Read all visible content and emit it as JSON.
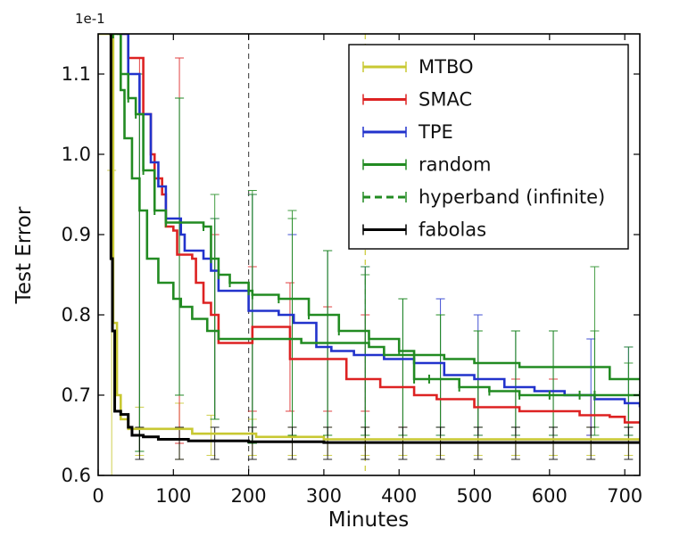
{
  "chart_data": {
    "type": "line",
    "title": "",
    "xlabel": "Minutes",
    "ylabel": "Test Error",
    "y_scale_note": "1e-1",
    "xlim": [
      0,
      720
    ],
    "ylim": [
      0.6,
      1.15
    ],
    "xticks": [
      0,
      100,
      200,
      300,
      400,
      500,
      600,
      700
    ],
    "yticks": [
      0.6,
      0.7,
      0.8,
      0.9,
      1.0,
      1.1
    ],
    "ytick_labels": [
      "0.6",
      "0.7",
      "0.8",
      "0.9",
      "1.0",
      "1.1"
    ],
    "vline_x": 200,
    "vline2_x": 355,
    "legend_position": "top-right",
    "series": [
      {
        "name": "MTBO",
        "color": "#c8c832",
        "style": "solid",
        "points": [
          [
            0,
            1.15
          ],
          [
            18,
            1.15
          ],
          [
            20,
            0.79
          ],
          [
            25,
            0.7
          ],
          [
            30,
            0.67
          ],
          [
            40,
            0.658
          ],
          [
            120,
            0.658
          ],
          [
            125,
            0.652
          ],
          [
            200,
            0.652
          ],
          [
            210,
            0.648
          ],
          [
            300,
            0.645
          ],
          [
            720,
            0.642
          ]
        ],
        "errorbars": [
          [
            18,
            0.6,
            0.98
          ],
          [
            55,
            0.625,
            0.685
          ],
          [
            108,
            0.62,
            0.69
          ],
          [
            150,
            0.625,
            0.675
          ],
          [
            205,
            0.625,
            0.67
          ],
          [
            258,
            0.625,
            0.66
          ],
          [
            305,
            0.625,
            0.66
          ],
          [
            355,
            0.625,
            0.66
          ],
          [
            405,
            0.625,
            0.66
          ],
          [
            455,
            0.625,
            0.66
          ],
          [
            505,
            0.625,
            0.66
          ],
          [
            555,
            0.625,
            0.66
          ],
          [
            605,
            0.625,
            0.66
          ],
          [
            655,
            0.625,
            0.66
          ],
          [
            705,
            0.625,
            0.66
          ]
        ]
      },
      {
        "name": "SMAC",
        "color": "#dd2222",
        "style": "solid",
        "points": [
          [
            30,
            1.15
          ],
          [
            40,
            1.12
          ],
          [
            55,
            1.12
          ],
          [
            60,
            1.05
          ],
          [
            70,
            1.0
          ],
          [
            75,
            0.97
          ],
          [
            85,
            0.95
          ],
          [
            90,
            0.91
          ],
          [
            100,
            0.905
          ],
          [
            105,
            0.875
          ],
          [
            125,
            0.87
          ],
          [
            130,
            0.84
          ],
          [
            140,
            0.815
          ],
          [
            150,
            0.8
          ],
          [
            160,
            0.765
          ],
          [
            200,
            0.765
          ],
          [
            205,
            0.785
          ],
          [
            250,
            0.785
          ],
          [
            255,
            0.745
          ],
          [
            320,
            0.745
          ],
          [
            330,
            0.72
          ],
          [
            370,
            0.72
          ],
          [
            375,
            0.71
          ],
          [
            410,
            0.71
          ],
          [
            420,
            0.7
          ],
          [
            450,
            0.695
          ],
          [
            500,
            0.685
          ],
          [
            560,
            0.68
          ],
          [
            640,
            0.675
          ],
          [
            680,
            0.673
          ],
          [
            700,
            0.666
          ],
          [
            720,
            0.666
          ]
        ],
        "errorbars": [
          [
            55,
            0.63,
            1.12
          ],
          [
            108,
            0.64,
            1.12
          ],
          [
            155,
            0.67,
            0.9
          ],
          [
            205,
            0.68,
            0.86
          ],
          [
            255,
            0.68,
            0.84
          ],
          [
            305,
            0.68,
            0.81
          ],
          [
            355,
            0.68,
            0.8
          ],
          [
            405,
            0.66,
            0.75
          ],
          [
            455,
            0.65,
            0.72
          ],
          [
            505,
            0.65,
            0.72
          ],
          [
            555,
            0.65,
            0.72
          ],
          [
            605,
            0.65,
            0.72
          ],
          [
            655,
            0.65,
            0.7
          ],
          [
            705,
            0.65,
            0.69
          ]
        ]
      },
      {
        "name": "TPE",
        "color": "#2233cc",
        "style": "solid",
        "points": [
          [
            30,
            1.15
          ],
          [
            40,
            1.1
          ],
          [
            55,
            1.05
          ],
          [
            70,
            0.99
          ],
          [
            80,
            0.96
          ],
          [
            90,
            0.92
          ],
          [
            105,
            0.92
          ],
          [
            110,
            0.9
          ],
          [
            115,
            0.88
          ],
          [
            140,
            0.87
          ],
          [
            150,
            0.855
          ],
          [
            160,
            0.83
          ],
          [
            195,
            0.83
          ],
          [
            200,
            0.805
          ],
          [
            240,
            0.8
          ],
          [
            260,
            0.79
          ],
          [
            290,
            0.76
          ],
          [
            310,
            0.755
          ],
          [
            340,
            0.75
          ],
          [
            370,
            0.75
          ],
          [
            380,
            0.745
          ],
          [
            420,
            0.74
          ],
          [
            460,
            0.725
          ],
          [
            500,
            0.72
          ],
          [
            540,
            0.71
          ],
          [
            580,
            0.705
          ],
          [
            620,
            0.7
          ],
          [
            660,
            0.695
          ],
          [
            700,
            0.69
          ],
          [
            720,
            0.685
          ]
        ],
        "errorbars": [
          [
            55,
            0.63,
            1.1
          ],
          [
            108,
            0.7,
            1.07
          ],
          [
            155,
            0.67,
            0.92
          ],
          [
            205,
            0.64,
            0.95
          ],
          [
            258,
            0.65,
            0.9
          ],
          [
            305,
            0.65,
            0.88
          ],
          [
            355,
            0.65,
            0.86
          ],
          [
            405,
            0.65,
            0.82
          ],
          [
            455,
            0.65,
            0.82
          ],
          [
            505,
            0.65,
            0.8
          ],
          [
            555,
            0.65,
            0.78
          ],
          [
            605,
            0.65,
            0.78
          ],
          [
            655,
            0.65,
            0.77
          ],
          [
            705,
            0.65,
            0.76
          ]
        ]
      },
      {
        "name": "random",
        "color": "#228b22",
        "style": "solid",
        "points": [
          [
            25,
            1.15
          ],
          [
            30,
            1.08
          ],
          [
            35,
            1.02
          ],
          [
            45,
            0.97
          ],
          [
            55,
            0.93
          ],
          [
            65,
            0.87
          ],
          [
            80,
            0.84
          ],
          [
            100,
            0.82
          ],
          [
            110,
            0.81
          ],
          [
            125,
            0.795
          ],
          [
            145,
            0.78
          ],
          [
            160,
            0.77
          ],
          [
            200,
            0.77
          ],
          [
            260,
            0.77
          ],
          [
            270,
            0.765
          ],
          [
            300,
            0.765
          ],
          [
            360,
            0.76
          ],
          [
            380,
            0.75
          ],
          [
            460,
            0.745
          ],
          [
            500,
            0.74
          ],
          [
            560,
            0.735
          ],
          [
            640,
            0.735
          ],
          [
            680,
            0.72
          ],
          [
            720,
            0.72
          ]
        ],
        "errorbars": [
          [
            55,
            0.63,
            1.1
          ],
          [
            108,
            0.7,
            1.07
          ],
          [
            155,
            0.67,
            0.92
          ],
          [
            205,
            0.64,
            0.95
          ],
          [
            258,
            0.65,
            0.92
          ],
          [
            305,
            0.65,
            0.88
          ],
          [
            355,
            0.65,
            0.85
          ],
          [
            405,
            0.65,
            0.82
          ],
          [
            455,
            0.65,
            0.8
          ],
          [
            505,
            0.65,
            0.78
          ],
          [
            555,
            0.65,
            0.78
          ],
          [
            605,
            0.65,
            0.78
          ],
          [
            660,
            0.65,
            0.86
          ],
          [
            705,
            0.65,
            0.74
          ]
        ]
      },
      {
        "name": "hyperband (infinite)",
        "color": "#228b22",
        "style": "dashed",
        "points": [
          [
            20,
            1.15
          ],
          [
            30,
            1.1
          ],
          [
            40,
            1.07
          ],
          [
            50,
            1.05
          ],
          [
            60,
            0.98
          ],
          [
            75,
            0.93
          ],
          [
            90,
            0.915
          ],
          [
            140,
            0.91
          ],
          [
            150,
            0.87
          ],
          [
            160,
            0.85
          ],
          [
            175,
            0.84
          ],
          [
            200,
            0.83
          ],
          [
            205,
            0.825
          ],
          [
            240,
            0.82
          ],
          [
            280,
            0.8
          ],
          [
            320,
            0.78
          ],
          [
            360,
            0.77
          ],
          [
            400,
            0.755
          ],
          [
            420,
            0.72
          ],
          [
            440,
            0.72
          ],
          [
            480,
            0.71
          ],
          [
            520,
            0.705
          ],
          [
            560,
            0.7
          ],
          [
            600,
            0.7
          ],
          [
            640,
            0.7
          ],
          [
            660,
            0.7
          ],
          [
            720,
            0.7
          ]
        ],
        "errorbars": [
          [
            55,
            0.63,
            1.1
          ],
          [
            108,
            0.7,
            1.07
          ],
          [
            155,
            0.67,
            0.95
          ],
          [
            205,
            0.64,
            0.955
          ],
          [
            258,
            0.65,
            0.93
          ],
          [
            305,
            0.65,
            0.88
          ],
          [
            355,
            0.65,
            0.86
          ],
          [
            405,
            0.65,
            0.82
          ],
          [
            455,
            0.66,
            0.8
          ],
          [
            505,
            0.66,
            0.78
          ],
          [
            555,
            0.66,
            0.78
          ],
          [
            605,
            0.66,
            0.78
          ],
          [
            660,
            0.66,
            0.78
          ],
          [
            705,
            0.66,
            0.76
          ]
        ]
      },
      {
        "name": "fabolas",
        "color": "#000000",
        "style": "solid",
        "points": [
          [
            15,
            1.15
          ],
          [
            17,
            0.87
          ],
          [
            19,
            0.78
          ],
          [
            22,
            0.68
          ],
          [
            30,
            0.676
          ],
          [
            40,
            0.66
          ],
          [
            45,
            0.65
          ],
          [
            60,
            0.648
          ],
          [
            80,
            0.645
          ],
          [
            120,
            0.643
          ],
          [
            200,
            0.642
          ],
          [
            300,
            0.641
          ],
          [
            720,
            0.641
          ]
        ],
        "errorbars": [
          [
            55,
            0.62,
            0.66
          ],
          [
            108,
            0.62,
            0.66
          ],
          [
            155,
            0.62,
            0.66
          ],
          [
            205,
            0.62,
            0.66
          ],
          [
            258,
            0.62,
            0.66
          ],
          [
            305,
            0.62,
            0.66
          ],
          [
            355,
            0.62,
            0.66
          ],
          [
            405,
            0.62,
            0.66
          ],
          [
            455,
            0.62,
            0.66
          ],
          [
            505,
            0.62,
            0.66
          ],
          [
            555,
            0.62,
            0.66
          ],
          [
            605,
            0.62,
            0.66
          ],
          [
            655,
            0.62,
            0.66
          ],
          [
            705,
            0.62,
            0.66
          ]
        ]
      }
    ]
  }
}
